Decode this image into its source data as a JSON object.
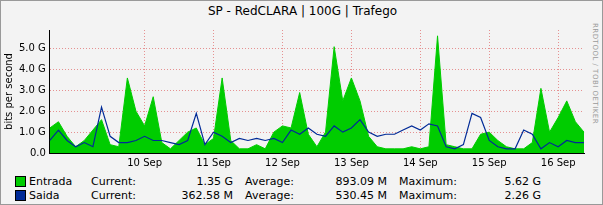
{
  "chart_data": {
    "type": "line",
    "title": "SP - RedCLARA | 100G | Trafego",
    "y_label": "bits per second",
    "categories": [
      null,
      null,
      null,
      null,
      null,
      null,
      null,
      null,
      null,
      null,
      null,
      "10 Sep",
      null,
      null,
      null,
      null,
      null,
      null,
      null,
      "11 Sep",
      null,
      null,
      null,
      null,
      null,
      null,
      null,
      "12 Sep",
      null,
      null,
      null,
      null,
      null,
      null,
      null,
      "13 Sep",
      null,
      null,
      null,
      null,
      null,
      null,
      null,
      "14 Sep",
      null,
      null,
      null,
      null,
      null,
      null,
      null,
      "15 Sep",
      null,
      null,
      null,
      null,
      null,
      null,
      null,
      "16 Sep",
      null,
      null,
      null
    ],
    "series": [
      {
        "name": "Entrada",
        "color": "#00cc00",
        "type": "area",
        "values": [
          1200000000.0,
          1500000000.0,
          800000000.0,
          300000000.0,
          600000000.0,
          1100000000.0,
          1600000000.0,
          400000000.0,
          300000000.0,
          3600000000.0,
          2000000000.0,
          1300000000.0,
          2700000000.0,
          500000000.0,
          200000000.0,
          600000000.0,
          1000000000.0,
          1200000000.0,
          400000000.0,
          700000000.0,
          3600000000.0,
          600000000.0,
          200000000.0,
          200000000.0,
          400000000.0,
          200000000.0,
          1000000000.0,
          1300000000.0,
          1200000000.0,
          2900000000.0,
          900000000.0,
          300000000.0,
          1000000000.0,
          5100000000.0,
          2500000000.0,
          3600000000.0,
          2500000000.0,
          800000000.0,
          300000000.0,
          200000000.0,
          200000000.0,
          200000000.0,
          300000000.0,
          200000000.0,
          300000000.0,
          5620000000.0,
          400000000.0,
          300000000.0,
          200000000.0,
          200000000.0,
          900000000.0,
          1000000000.0,
          600000000.0,
          300000000.0,
          200000000.0,
          200000000.0,
          500000000.0,
          3100000000.0,
          1000000000.0,
          1700000000.0,
          2500000000.0,
          1500000000.0,
          1000000000.0
        ],
        "stats": [
          {
            "label": "Current:",
            "text": "1.35 G"
          },
          {
            "label": "Average:",
            "text": "893.09 M"
          },
          {
            "label": "Maximum:",
            "text": "5.62 G"
          }
        ]
      },
      {
        "name": "Saida",
        "color": "#002a97",
        "type": "line",
        "values": [
          600000000.0,
          1100000000.0,
          600000000.0,
          300000000.0,
          500000000.0,
          300000000.0,
          2200000000.0,
          800000000.0,
          500000000.0,
          500000000.0,
          600000000.0,
          800000000.0,
          600000000.0,
          600000000.0,
          500000000.0,
          400000000.0,
          600000000.0,
          1900000000.0,
          400000000.0,
          1000000000.0,
          800000000.0,
          500000000.0,
          700000000.0,
          600000000.0,
          700000000.0,
          600000000.0,
          700000000.0,
          500000000.0,
          1100000000.0,
          900000000.0,
          1200000000.0,
          900000000.0,
          800000000.0,
          1300000000.0,
          1000000000.0,
          1200000000.0,
          1600000000.0,
          1000000000.0,
          800000000.0,
          900000000.0,
          900000000.0,
          1100000000.0,
          1300000000.0,
          1100000000.0,
          1400000000.0,
          1300000000.0,
          300000000.0,
          200000000.0,
          400000000.0,
          1900000000.0,
          1700000000.0,
          600000000.0,
          300000000.0,
          200000000.0,
          200000000.0,
          1100000000.0,
          900000000.0,
          200000000.0,
          500000000.0,
          300000000.0,
          600000000.0,
          500000000.0,
          500000000.0
        ],
        "stats": [
          {
            "label": "Current:",
            "text": "362.58 M"
          },
          {
            "label": "Average:",
            "text": "530.45 M"
          },
          {
            "label": "Maximum:",
            "text": "2.26 G"
          }
        ]
      }
    ],
    "ylim": [
      0,
      5900000000.0
    ],
    "yticks": [
      {
        "value": 0,
        "label": "0.0"
      },
      {
        "value": 1000000000.0,
        "label": "1.0 G"
      },
      {
        "value": 2000000000.0,
        "label": "2.0 G"
      },
      {
        "value": 3000000000.0,
        "label": "3.0 G"
      },
      {
        "value": 4000000000.0,
        "label": "4.0 G"
      },
      {
        "value": 5000000000.0,
        "label": "5.0 G"
      }
    ],
    "grid": true,
    "annotations": [
      "RRDTOOL / TOBI OETIKER"
    ]
  }
}
